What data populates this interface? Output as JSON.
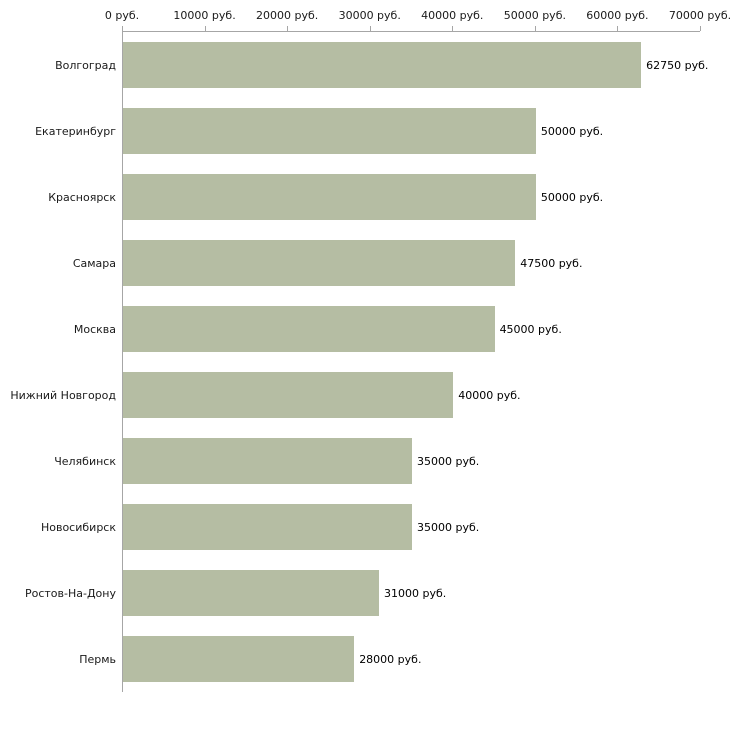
{
  "chart_data": {
    "type": "bar",
    "orientation": "horizontal",
    "title": "",
    "xlabel": "",
    "ylabel": "",
    "grid": false,
    "legend": "none",
    "categories": [
      "Волгоград",
      "Екатеринбург",
      "Красноярск",
      "Самара",
      "Москва",
      "Нижний Новгород",
      "Челябинск",
      "Новосибирск",
      "Ростов-На-Дону",
      "Пермь"
    ],
    "values": [
      62750,
      50000,
      50000,
      47500,
      45000,
      40000,
      35000,
      35000,
      31000,
      28000
    ],
    "value_labels": [
      "62750 руб.",
      "50000 руб.",
      "50000 руб.",
      "47500 руб.",
      "45000 руб.",
      "40000 руб.",
      "35000 руб.",
      "35000 руб.",
      "31000 руб.",
      "28000 руб."
    ],
    "x_tick_values": [
      0,
      10000,
      20000,
      30000,
      40000,
      50000,
      60000,
      70000
    ],
    "x_tick_labels": [
      "0 руб.",
      "10000 руб.",
      "20000 руб.",
      "30000 руб.",
      "40000 руб.",
      "50000 руб.",
      "60000 руб.",
      "70000 руб."
    ],
    "xlim": [
      0,
      70000
    ],
    "colors": {
      "bar": "#b5bda3",
      "axis": "#a6a6a6",
      "text": "#1a1a1a",
      "background": "#ffffff"
    }
  }
}
